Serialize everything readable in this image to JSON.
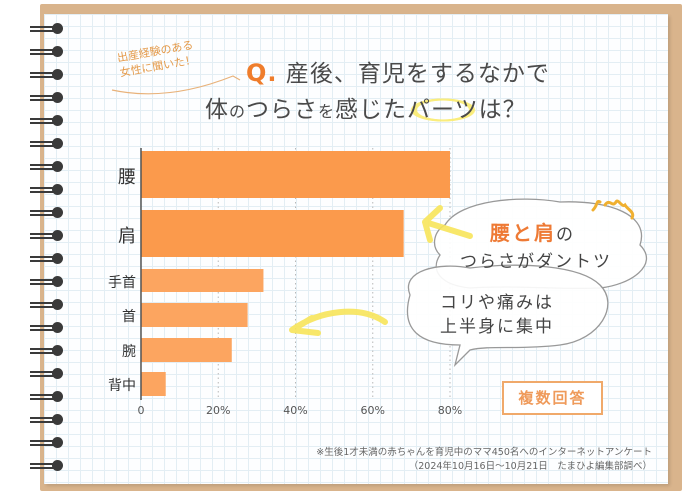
{
  "tag_note": {
    "line1": "出産経験のある",
    "line2": "女性に聞いた！"
  },
  "title": {
    "q_mark": "Q.",
    "line1": "産後、育児をするなかで",
    "line2_a": "体",
    "line2_b": "の",
    "line2_c": "つらさ",
    "line2_d": "を",
    "line2_e": "感じた",
    "line2_f": "パーツ",
    "line2_g": "は？"
  },
  "callout": {
    "highlight": "腰と肩",
    "particle": "の",
    "line2": "つらさがダントツ",
    "line3": "コリや痛みは",
    "line4": "上半身に集中"
  },
  "badge": "複数回答",
  "footnote": {
    "line1": "※生後1才未満の赤ちゃんを育児中のママ450名へのインターネットアンケート",
    "line2": "（2024年10月16日～10月21日　たまひよ編集部調べ）"
  },
  "chart_data": {
    "type": "bar",
    "orientation": "horizontal",
    "categories": [
      "腰",
      "肩",
      "手首",
      "首",
      "腕",
      "背中"
    ],
    "values": [
      80,
      68,
      31.7,
      27.6,
      23.5,
      6.4
    ],
    "unit": "%",
    "xlim": [
      0,
      80
    ],
    "xticks": [
      "0",
      "20%",
      "40%",
      "60%",
      "80%"
    ],
    "grid": "vertical dotted",
    "colors": [
      "#fb9a4c",
      "#fb9a4c",
      "#fca560",
      "#fca560",
      "#fca560",
      "#fca560"
    ]
  }
}
